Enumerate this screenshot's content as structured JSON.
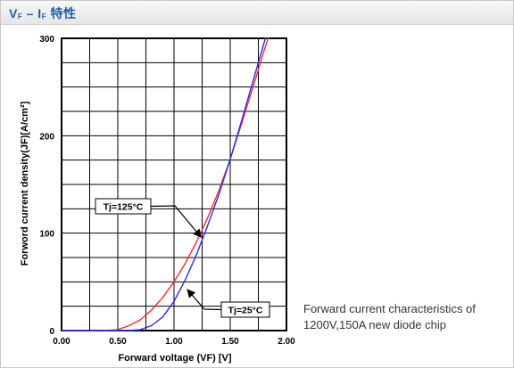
{
  "header": {
    "title_main": "V",
    "title_sub1": "F",
    "title_dash": " – I",
    "title_sub2": "F",
    "title_tail": " 特性"
  },
  "caption": "Forward current characteristics of\n1200V,150A new diode chip",
  "chart_data": {
    "type": "line",
    "title": "",
    "xlabel": "Forward voltage (VF) [V]",
    "ylabel": "Forword current density(JF)[A/cm²]",
    "xlim": [
      0,
      2.0
    ],
    "ylim": [
      0,
      300
    ],
    "x_ticks": [
      "0.00",
      "0.50",
      "1.00",
      "1.50",
      "2.00"
    ],
    "x_tick_values": [
      0,
      0.5,
      1.0,
      1.5,
      2.0
    ],
    "y_ticks": [
      "0",
      "100",
      "200",
      "300"
    ],
    "y_tick_values": [
      0,
      100,
      200,
      300
    ],
    "grid": true,
    "grid_step_x": 0.25,
    "grid_step_y": 25,
    "series": [
      {
        "name": "Tj=125°C",
        "color": "#ff2a2a",
        "x": [
          0.0,
          0.4,
          0.5,
          0.6,
          0.7,
          0.8,
          0.9,
          1.0,
          1.1,
          1.2,
          1.3,
          1.4,
          1.5,
          1.6,
          1.7,
          1.8,
          1.86
        ],
        "y": [
          0,
          0,
          1,
          5,
          11,
          21,
          34,
          50,
          69,
          91,
          116,
          144,
          176,
          212,
          249,
          287,
          308
        ]
      },
      {
        "name": "Tj=25°C",
        "color": "#2a2aff",
        "x": [
          0.0,
          0.6,
          0.7,
          0.8,
          0.9,
          1.0,
          1.1,
          1.2,
          1.3,
          1.4,
          1.5,
          1.6,
          1.7,
          1.8,
          1.84
        ],
        "y": [
          0,
          0,
          1,
          5,
          14,
          30,
          52,
          78,
          108,
          140,
          176,
          215,
          255,
          295,
          310
        ]
      }
    ],
    "annotations": [
      {
        "text": "Tj=125°C",
        "target_x": 1.24,
        "target_y": 96
      },
      {
        "text": "Tj=25°C",
        "target_x": 1.12,
        "target_y": 42
      }
    ]
  }
}
